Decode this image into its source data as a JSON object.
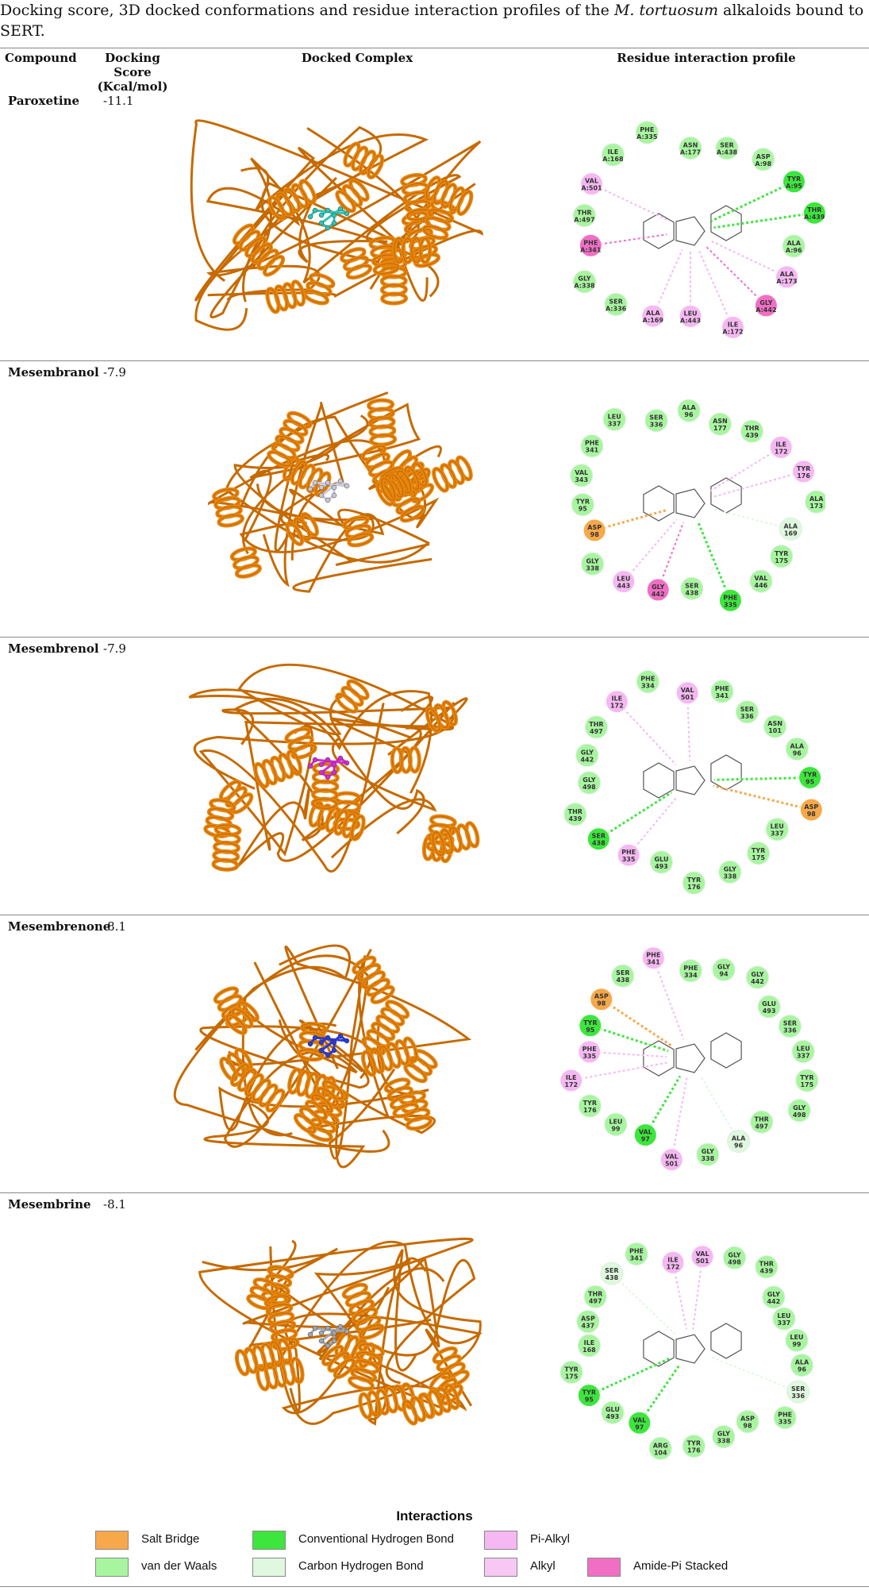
{
  "caption": {
    "pre": "Docking score, 3D docked conformations and residue interaction profiles of the ",
    "species": "M. tortuosum",
    "post": " alkaloids bound to SERT."
  },
  "headers": {
    "compound": "Compound",
    "score": "Docking Score (Kcal/mol)",
    "complex": "Docked Complex",
    "profile": "Residue interaction profile"
  },
  "colors": {
    "salt_bridge": "#f7a84a",
    "vdw": "#a8f5a0",
    "conv_hbond": "#3de63d",
    "carbon_hbond": "#dff8df",
    "pi_alkyl": "#f5b8f2",
    "alkyl": "#f7c8f3",
    "amide_pi": "#f06fc4",
    "protein": "#e8850c",
    "ligand_paroxetine": "#2ec4b6",
    "ligand_mesembranol": "#c8c8d8",
    "ligand_mesembrenol": "#d22bd2",
    "ligand_mesembrenone": "#2a3ad8",
    "ligand_mesembrine": "#a0a6b0"
  },
  "compounds": [
    {
      "name": "Paroxetine",
      "score": "-11.1",
      "residues": [
        {
          "label": "ASN A:177",
          "type": "vdw"
        },
        {
          "label": "SER A:438",
          "type": "vdw"
        },
        {
          "label": "ASP A:98",
          "type": "vdw"
        },
        {
          "label": "TYR A:95",
          "type": "conv_hbond"
        },
        {
          "label": "THR A:439",
          "type": "conv_hbond"
        },
        {
          "label": "ALA A:96",
          "type": "vdw"
        },
        {
          "label": "ALA A:173",
          "type": "pi_alkyl"
        },
        {
          "label": "GLY A:442",
          "type": "amide_pi"
        },
        {
          "label": "ILE A:172",
          "type": "pi_alkyl"
        },
        {
          "label": "LEU A:443",
          "type": "pi_alkyl"
        },
        {
          "label": "ALA A:169",
          "type": "pi_alkyl"
        },
        {
          "label": "SER A:336",
          "type": "vdw"
        },
        {
          "label": "GLY A:338",
          "type": "vdw"
        },
        {
          "label": "PHE A:341",
          "type": "amide_pi"
        },
        {
          "label": "THR A:497",
          "type": "vdw"
        },
        {
          "label": "VAL A:501",
          "type": "pi_alkyl"
        },
        {
          "label": "ILE A:168",
          "type": "vdw"
        },
        {
          "label": "PHE A:335",
          "type": "vdw"
        }
      ]
    },
    {
      "name": "Mesembranol",
      "score": "-7.9",
      "residues": [
        {
          "label": "ASN 177",
          "type": "vdw"
        },
        {
          "label": "THR 439",
          "type": "vdw"
        },
        {
          "label": "ILE 172",
          "type": "pi_alkyl"
        },
        {
          "label": "TYR 176",
          "type": "pi_alkyl"
        },
        {
          "label": "ALA 173",
          "type": "vdw"
        },
        {
          "label": "ALA 169",
          "type": "carbon_hbond"
        },
        {
          "label": "TYR 175",
          "type": "vdw"
        },
        {
          "label": "VAL 446",
          "type": "vdw"
        },
        {
          "label": "PHE 335",
          "type": "conv_hbond"
        },
        {
          "label": "SER 438",
          "type": "vdw"
        },
        {
          "label": "GLY 442",
          "type": "amide_pi"
        },
        {
          "label": "LEU 443",
          "type": "pi_alkyl"
        },
        {
          "label": "GLY 338",
          "type": "vdw"
        },
        {
          "label": "ASP 98",
          "type": "salt_bridge"
        },
        {
          "label": "TYR 95",
          "type": "vdw"
        },
        {
          "label": "VAL 343",
          "type": "vdw"
        },
        {
          "label": "PHE 341",
          "type": "vdw"
        },
        {
          "label": "LEU 337",
          "type": "vdw"
        },
        {
          "label": "SER 336",
          "type": "vdw"
        },
        {
          "label": "ALA 96",
          "type": "vdw"
        }
      ]
    },
    {
      "name": "Mesembrenol",
      "score": "-7.9",
      "residues": [
        {
          "label": "SER 336",
          "type": "vdw"
        },
        {
          "label": "ASN 101",
          "type": "vdw"
        },
        {
          "label": "ALA 96",
          "type": "vdw"
        },
        {
          "label": "TYR 95",
          "type": "conv_hbond"
        },
        {
          "label": "ASP 98",
          "type": "salt_bridge"
        },
        {
          "label": "LEU 337",
          "type": "vdw"
        },
        {
          "label": "TYR 175",
          "type": "vdw"
        },
        {
          "label": "GLY 338",
          "type": "vdw"
        },
        {
          "label": "TYR 176",
          "type": "vdw"
        },
        {
          "label": "GLU 493",
          "type": "vdw"
        },
        {
          "label": "PHE 335",
          "type": "pi_alkyl"
        },
        {
          "label": "SER 438",
          "type": "conv_hbond"
        },
        {
          "label": "THR 439",
          "type": "vdw"
        },
        {
          "label": "GLY 498",
          "type": "vdw"
        },
        {
          "label": "GLY 442",
          "type": "vdw"
        },
        {
          "label": "THR 497",
          "type": "vdw"
        },
        {
          "label": "ILE 172",
          "type": "pi_alkyl"
        },
        {
          "label": "PHE 334",
          "type": "vdw"
        },
        {
          "label": "VAL 501",
          "type": "pi_alkyl"
        },
        {
          "label": "PHE 341",
          "type": "vdw"
        }
      ]
    },
    {
      "name": "Mesembrenone",
      "score": "-8.1",
      "residues": [
        {
          "label": "GLU 493",
          "type": "vdw"
        },
        {
          "label": "SER 336",
          "type": "vdw"
        },
        {
          "label": "LEU 337",
          "type": "vdw"
        },
        {
          "label": "TYR 175",
          "type": "vdw"
        },
        {
          "label": "GLY 498",
          "type": "vdw"
        },
        {
          "label": "THR 497",
          "type": "vdw"
        },
        {
          "label": "ALA 96",
          "type": "carbon_hbond"
        },
        {
          "label": "GLY 338",
          "type": "vdw"
        },
        {
          "label": "VAL 501",
          "type": "pi_alkyl"
        },
        {
          "label": "VAL 97",
          "type": "conv_hbond"
        },
        {
          "label": "LEU 99",
          "type": "vdw"
        },
        {
          "label": "TYR 176",
          "type": "vdw"
        },
        {
          "label": "ILE 172",
          "type": "pi_alkyl"
        },
        {
          "label": "PHE 335",
          "type": "pi_alkyl"
        },
        {
          "label": "TYR 95",
          "type": "conv_hbond"
        },
        {
          "label": "ASP 98",
          "type": "salt_bridge"
        },
        {
          "label": "SER 438",
          "type": "vdw"
        },
        {
          "label": "PHE 341",
          "type": "pi_alkyl"
        },
        {
          "label": "PHE 334",
          "type": "vdw"
        },
        {
          "label": "GLY 94",
          "type": "vdw"
        },
        {
          "label": "GLY 442",
          "type": "vdw"
        }
      ]
    },
    {
      "name": "Mesembrine",
      "score": "-8.1",
      "residues": [
        {
          "label": "LEU 337",
          "type": "vdw"
        },
        {
          "label": "LEU 99",
          "type": "vdw"
        },
        {
          "label": "ALA 96",
          "type": "vdw"
        },
        {
          "label": "SER 336",
          "type": "carbon_hbond"
        },
        {
          "label": "PHE 335",
          "type": "vdw"
        },
        {
          "label": "ASP 98",
          "type": "vdw"
        },
        {
          "label": "GLY 338",
          "type": "vdw"
        },
        {
          "label": "TYR 176",
          "type": "vdw"
        },
        {
          "label": "ARG 104",
          "type": "vdw"
        },
        {
          "label": "VAL 97",
          "type": "conv_hbond"
        },
        {
          "label": "GLU 493",
          "type": "vdw"
        },
        {
          "label": "TYR 95",
          "type": "conv_hbond"
        },
        {
          "label": "TYR 175",
          "type": "vdw"
        },
        {
          "label": "ILE 168",
          "type": "vdw"
        },
        {
          "label": "ASP 437",
          "type": "vdw"
        },
        {
          "label": "THR 497",
          "type": "vdw"
        },
        {
          "label": "SER 438",
          "type": "carbon_hbond"
        },
        {
          "label": "PHE 341",
          "type": "vdw"
        },
        {
          "label": "ILE 172",
          "type": "pi_alkyl"
        },
        {
          "label": "VAL 501",
          "type": "pi_alkyl"
        },
        {
          "label": "GLY 498",
          "type": "vdw"
        },
        {
          "label": "THR 439",
          "type": "vdw"
        },
        {
          "label": "GLY 442",
          "type": "vdw"
        }
      ]
    }
  ],
  "legend": {
    "title": "Interactions",
    "items": [
      {
        "label": "Salt Bridge",
        "type": "salt_bridge"
      },
      {
        "label": "Conventional Hydrogen Bond",
        "type": "conv_hbond"
      },
      {
        "label": "Pi-Alkyl",
        "type": "pi_alkyl"
      },
      {
        "label": "van der Waals",
        "type": "vdw"
      },
      {
        "label": "Carbon Hydrogen Bond",
        "type": "carbon_hbond"
      },
      {
        "label": "Alkyl",
        "type": "alkyl"
      },
      {
        "label": "Amide-Pi Stacked",
        "type": "amide_pi"
      }
    ]
  }
}
